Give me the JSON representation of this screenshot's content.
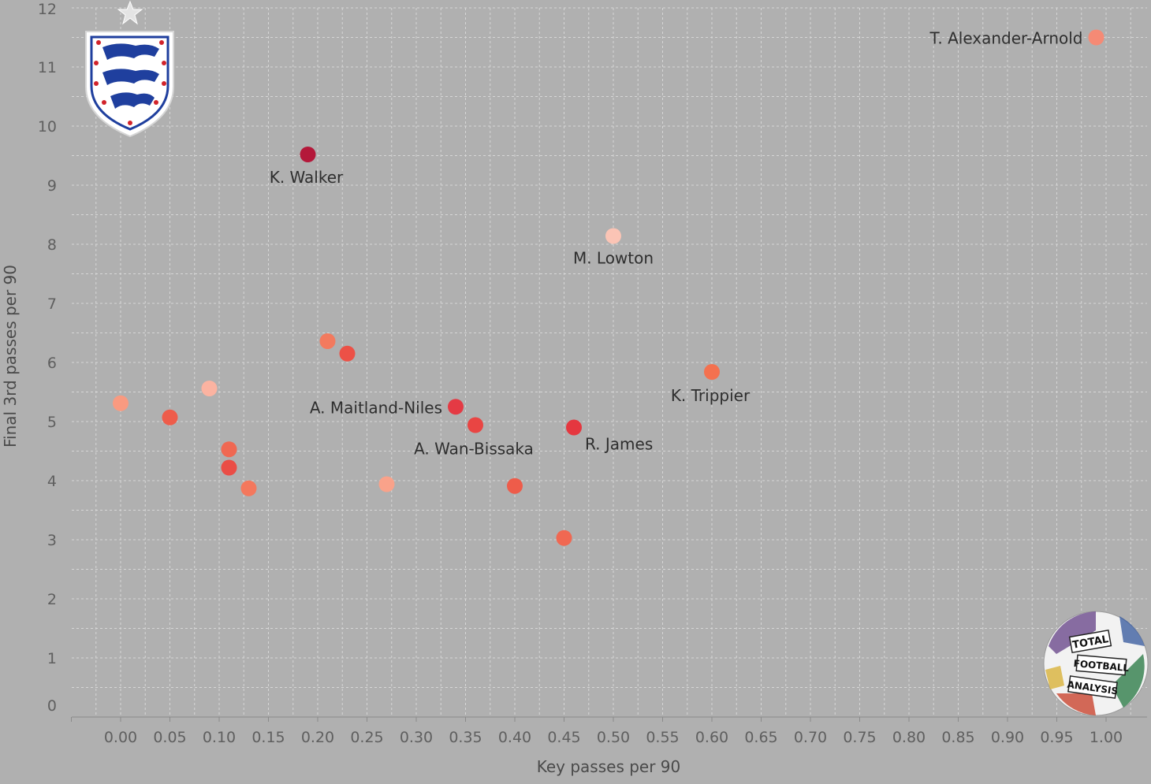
{
  "chart_data": {
    "type": "scatter",
    "xlabel": "Key passes per 90",
    "ylabel": "Final 3rd passes per 90",
    "xlim": [
      -0.05,
      1.05
    ],
    "ylim": [
      0,
      12
    ],
    "xticks": [
      "0.00",
      "0.05",
      "0.10",
      "0.15",
      "0.20",
      "0.25",
      "0.30",
      "0.35",
      "0.40",
      "0.45",
      "0.50",
      "0.55",
      "0.60",
      "0.65",
      "0.70",
      "0.75",
      "0.80",
      "0.85",
      "0.90",
      "0.95",
      "1.00"
    ],
    "yticks": [
      "0",
      "1",
      "2",
      "3",
      "4",
      "5",
      "6",
      "7",
      "8",
      "9",
      "10",
      "11",
      "12"
    ],
    "grid": true,
    "points": [
      {
        "x": 0.99,
        "y": 11.5,
        "label": "T. Alexander-Arnold",
        "color": "#f58a75"
      },
      {
        "x": 0.19,
        "y": 9.52,
        "label": "K. Walker",
        "color": "#b4183a"
      },
      {
        "x": 0.5,
        "y": 8.14,
        "label": "M. Lowton",
        "color": "#fbc4b5"
      },
      {
        "x": 0.6,
        "y": 5.84,
        "label": "K. Trippier",
        "color": "#f4714f"
      },
      {
        "x": 0.34,
        "y": 5.25,
        "label": "A. Maitland-Niles",
        "color": "#e43a44"
      },
      {
        "x": 0.36,
        "y": 4.94,
        "label": "A. Wan-Bissaka",
        "color": "#e94543"
      },
      {
        "x": 0.46,
        "y": 4.9,
        "label": "R. James",
        "color": "#e5373f"
      },
      {
        "x": 0.21,
        "y": 6.36,
        "label": "",
        "color": "#f37a5e"
      },
      {
        "x": 0.23,
        "y": 6.15,
        "label": "",
        "color": "#ec5147"
      },
      {
        "x": 0.0,
        "y": 5.31,
        "label": "",
        "color": "#f99a80"
      },
      {
        "x": 0.05,
        "y": 5.07,
        "label": "",
        "color": "#ee5c4a"
      },
      {
        "x": 0.09,
        "y": 5.56,
        "label": "",
        "color": "#fbb3a1"
      },
      {
        "x": 0.11,
        "y": 4.53,
        "label": "",
        "color": "#f06852"
      },
      {
        "x": 0.11,
        "y": 4.22,
        "label": "",
        "color": "#ea4d46"
      },
      {
        "x": 0.13,
        "y": 3.87,
        "label": "",
        "color": "#f4785d"
      },
      {
        "x": 0.27,
        "y": 3.94,
        "label": "",
        "color": "#f9a28a"
      },
      {
        "x": 0.4,
        "y": 3.91,
        "label": "",
        "color": "#ee5c4a"
      },
      {
        "x": 0.45,
        "y": 3.03,
        "label": "",
        "color": "#f06852"
      }
    ]
  },
  "logos": {
    "crest": "england-crest",
    "watermark": "Total Football Analysis",
    "watermark_lines": [
      "TOTAL",
      "FOOTBALL",
      "ANALYSIS"
    ]
  },
  "colors": {
    "background": "#b0b0b0",
    "grid": "#d6d6d6",
    "crest_blue": "#1f3f9e",
    "crest_red": "#d2232a"
  }
}
